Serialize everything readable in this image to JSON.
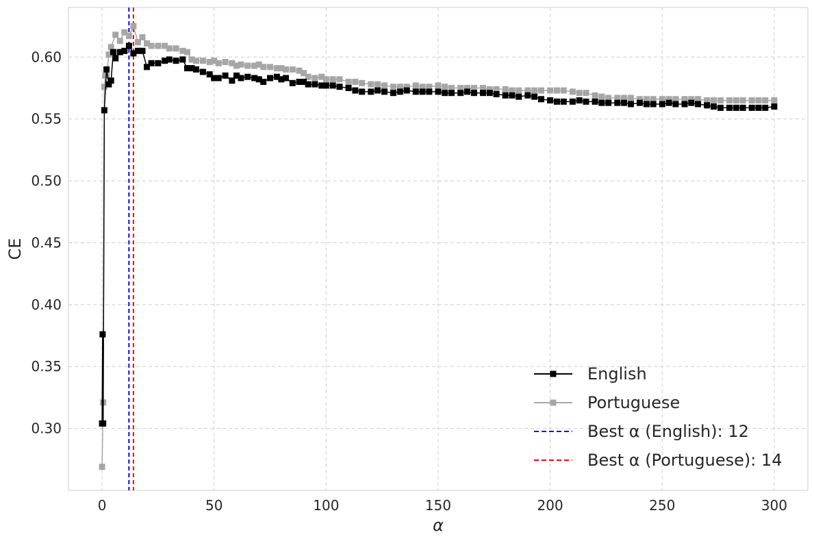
{
  "chart_data": {
    "type": "line",
    "xlabel": "α",
    "ylabel": "CE",
    "xlim": [
      -15,
      315
    ],
    "ylim": [
      0.25,
      0.64
    ],
    "xticks": [
      0,
      50,
      100,
      150,
      200,
      250,
      300
    ],
    "yticks": [
      0.3,
      0.35,
      0.4,
      0.45,
      0.5,
      0.55,
      0.6
    ],
    "grid": true,
    "legend_position": "bottom-right",
    "series": [
      {
        "name": "English",
        "color": "#000000",
        "marker": "square",
        "x": [
          0,
          0.25,
          0.5,
          1,
          2,
          3,
          4,
          5,
          6,
          8,
          10,
          12,
          14,
          16,
          18,
          20,
          22,
          25,
          28,
          30,
          33,
          36,
          38,
          40,
          42,
          45,
          48,
          50,
          52,
          55,
          58,
          60,
          62,
          65,
          68,
          70,
          72,
          75,
          78,
          80,
          82,
          85,
          88,
          90,
          92,
          95,
          98,
          100,
          103,
          106,
          110,
          113,
          116,
          120,
          123,
          126,
          130,
          133,
          136,
          140,
          143,
          146,
          150,
          153,
          156,
          160,
          163,
          166,
          170,
          173,
          176,
          180,
          183,
          186,
          190,
          193,
          196,
          200,
          203,
          206,
          210,
          213,
          216,
          220,
          223,
          226,
          230,
          233,
          236,
          240,
          243,
          246,
          250,
          253,
          256,
          260,
          263,
          266,
          270,
          273,
          276,
          280,
          283,
          286,
          290,
          293,
          296,
          300
        ],
        "y": [
          0.304,
          0.376,
          0.304,
          0.557,
          0.59,
          0.578,
          0.581,
          0.604,
          0.599,
          0.604,
          0.605,
          0.609,
          0.603,
          0.605,
          0.605,
          0.592,
          0.595,
          0.595,
          0.597,
          0.598,
          0.597,
          0.598,
          0.591,
          0.591,
          0.59,
          0.588,
          0.586,
          0.583,
          0.583,
          0.585,
          0.581,
          0.585,
          0.583,
          0.584,
          0.583,
          0.582,
          0.58,
          0.583,
          0.584,
          0.582,
          0.583,
          0.579,
          0.58,
          0.58,
          0.578,
          0.578,
          0.577,
          0.577,
          0.577,
          0.576,
          0.575,
          0.573,
          0.572,
          0.572,
          0.573,
          0.572,
          0.571,
          0.572,
          0.573,
          0.572,
          0.572,
          0.572,
          0.572,
          0.571,
          0.571,
          0.571,
          0.572,
          0.571,
          0.571,
          0.571,
          0.57,
          0.569,
          0.569,
          0.568,
          0.569,
          0.568,
          0.566,
          0.565,
          0.564,
          0.564,
          0.564,
          0.565,
          0.564,
          0.564,
          0.563,
          0.563,
          0.563,
          0.563,
          0.562,
          0.563,
          0.562,
          0.562,
          0.562,
          0.563,
          0.562,
          0.562,
          0.563,
          0.562,
          0.561,
          0.56,
          0.559,
          0.559,
          0.559,
          0.559,
          0.559,
          0.559,
          0.559,
          0.56
        ]
      },
      {
        "name": "Portuguese",
        "color": "#a6a6a6",
        "marker": "square",
        "x": [
          0,
          0.5,
          1,
          1.5,
          2,
          3,
          4,
          6,
          8,
          10,
          12,
          14,
          16,
          18,
          20,
          22,
          25,
          28,
          30,
          33,
          36,
          38,
          40,
          42,
          45,
          48,
          50,
          52,
          55,
          58,
          60,
          62,
          65,
          68,
          70,
          72,
          75,
          78,
          80,
          82,
          85,
          88,
          90,
          92,
          95,
          98,
          100,
          103,
          106,
          110,
          113,
          116,
          120,
          123,
          126,
          130,
          133,
          136,
          140,
          143,
          146,
          150,
          153,
          156,
          160,
          163,
          166,
          170,
          173,
          176,
          180,
          183,
          186,
          190,
          193,
          196,
          200,
          203,
          206,
          210,
          213,
          216,
          220,
          223,
          226,
          230,
          233,
          236,
          240,
          243,
          246,
          250,
          253,
          256,
          260,
          263,
          266,
          270,
          273,
          276,
          280,
          283,
          286,
          290,
          293,
          296,
          300
        ],
        "y": [
          0.269,
          0.321,
          0.576,
          0.585,
          0.585,
          0.602,
          0.608,
          0.618,
          0.613,
          0.62,
          0.617,
          0.625,
          0.612,
          0.616,
          0.611,
          0.609,
          0.609,
          0.609,
          0.607,
          0.607,
          0.605,
          0.604,
          0.598,
          0.597,
          0.597,
          0.596,
          0.597,
          0.595,
          0.596,
          0.595,
          0.593,
          0.594,
          0.593,
          0.593,
          0.594,
          0.592,
          0.592,
          0.591,
          0.591,
          0.59,
          0.59,
          0.589,
          0.587,
          0.584,
          0.583,
          0.584,
          0.582,
          0.582,
          0.582,
          0.58,
          0.58,
          0.579,
          0.578,
          0.578,
          0.577,
          0.576,
          0.576,
          0.576,
          0.577,
          0.576,
          0.576,
          0.577,
          0.576,
          0.575,
          0.575,
          0.575,
          0.575,
          0.575,
          0.574,
          0.574,
          0.574,
          0.573,
          0.573,
          0.573,
          0.573,
          0.573,
          0.573,
          0.573,
          0.573,
          0.572,
          0.571,
          0.571,
          0.569,
          0.568,
          0.567,
          0.567,
          0.567,
          0.567,
          0.566,
          0.566,
          0.566,
          0.566,
          0.566,
          0.566,
          0.566,
          0.566,
          0.566,
          0.565,
          0.565,
          0.565,
          0.565,
          0.565,
          0.565,
          0.565,
          0.565,
          0.565,
          0.565
        ]
      }
    ],
    "vlines": [
      {
        "label": "Best α (English): 12",
        "x": 12,
        "color": "#0000ff",
        "style": "dashed"
      },
      {
        "label": "Best α (Portuguese): 14",
        "x": 14,
        "color": "#ff0000",
        "style": "dashed"
      }
    ]
  }
}
